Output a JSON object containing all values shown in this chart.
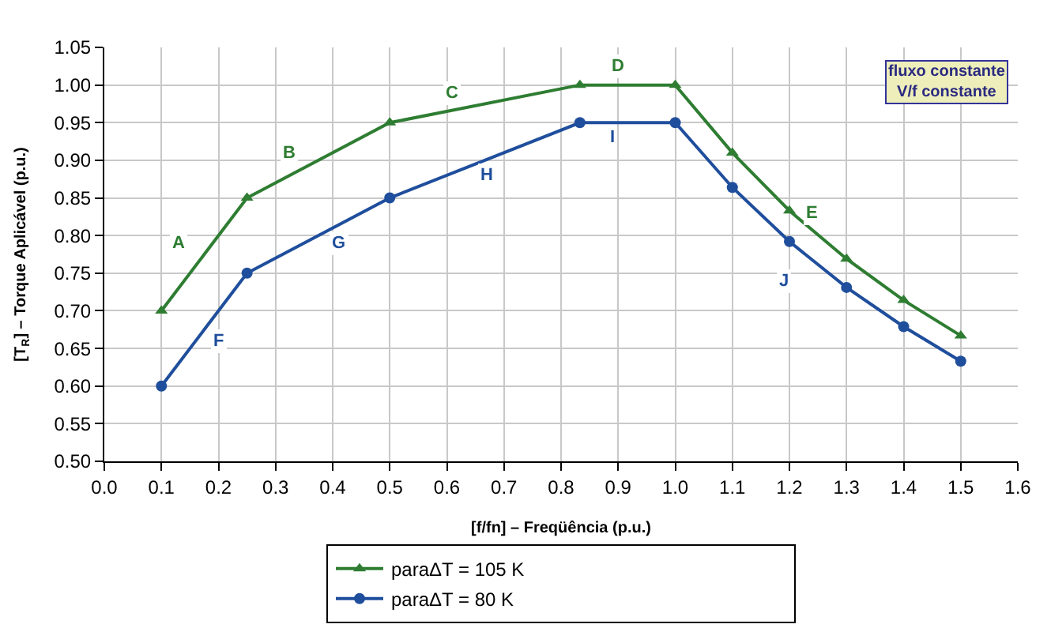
{
  "chart_data": {
    "type": "line",
    "xlabel": "[f/fn] – Freqüência (p.u.)",
    "ylabel": "[T$_{R}$] – Torque Aplicável (p.u.)",
    "x": [
      0.1,
      0.25,
      0.5,
      0.833,
      1.0,
      1.1,
      1.2,
      1.3,
      1.4,
      1.5
    ],
    "series": [
      {
        "name": "paraΔT = 105 K",
        "color": "#2e7d32",
        "marker": "triangle",
        "values": [
          0.7,
          0.85,
          0.95,
          1.0,
          1.0,
          0.91,
          0.833,
          0.769,
          0.714,
          0.667
        ]
      },
      {
        "name": "paraΔT = 80 K",
        "color": "#1f4e9c",
        "marker": "circle",
        "values": [
          0.6,
          0.75,
          0.85,
          0.95,
          0.95,
          0.864,
          0.792,
          0.731,
          0.679,
          0.633
        ]
      }
    ],
    "xlim": [
      0.0,
      1.6
    ],
    "xticks": [
      {
        "value": 0,
        "label": "0.0"
      },
      {
        "value": 0.1,
        "label": "0.1"
      },
      {
        "value": 0.2,
        "label": "0.2"
      },
      {
        "value": 0.3,
        "label": "0.3"
      },
      {
        "value": 0.4,
        "label": "0.4"
      },
      {
        "value": 0.5,
        "label": "0.5"
      },
      {
        "value": 0.6,
        "label": "0.6"
      },
      {
        "value": 0.7,
        "label": "0.7"
      },
      {
        "value": 0.8,
        "label": "0.8"
      },
      {
        "value": 0.9,
        "label": "0.9"
      },
      {
        "value": 1.0,
        "label": "1.0"
      },
      {
        "value": 1.1,
        "label": "1.1"
      },
      {
        "value": 1.2,
        "label": "1.2"
      },
      {
        "value": 1.3,
        "label": "1.3"
      },
      {
        "value": 1.4,
        "label": "1.4"
      },
      {
        "value": 1.5,
        "label": "1.5"
      },
      {
        "value": 1.6,
        "label": "1.6"
      }
    ],
    "ylim": [
      0.5,
      1.05
    ],
    "yticks": [
      {
        "value": 0.5,
        "label": "0.50"
      },
      {
        "value": 0.55,
        "label": "0.55"
      },
      {
        "value": 0.6,
        "label": "0.60"
      },
      {
        "value": 0.65,
        "label": "0.65"
      },
      {
        "value": 0.7,
        "label": "0.70"
      },
      {
        "value": 0.75,
        "label": "0.75"
      },
      {
        "value": 0.8,
        "label": "0.80"
      },
      {
        "value": 0.85,
        "label": "0.85"
      },
      {
        "value": 0.9,
        "label": "0.90"
      },
      {
        "value": 0.95,
        "label": "0.95"
      },
      {
        "value": 1.0,
        "label": "1.00"
      },
      {
        "value": 1.05,
        "label": "1.05"
      }
    ],
    "grid": true,
    "legend": "bottom",
    "line_style": "solid",
    "annotations": [
      {
        "text": "A",
        "x": 0.13,
        "y": 0.79
      },
      {
        "text": "B",
        "x": 0.325,
        "y": 0.91
      },
      {
        "text": "C",
        "x": 0.61,
        "y": 0.99
      },
      {
        "text": "D",
        "x": 0.9,
        "y": 1.025
      },
      {
        "text": "E",
        "x": 1.24,
        "y": 0.83
      },
      {
        "text": "F",
        "x": 0.2,
        "y": 0.66
      },
      {
        "text": "G",
        "x": 0.41,
        "y": 0.79
      },
      {
        "text": "H",
        "x": 0.67,
        "y": 0.88
      },
      {
        "text": "I",
        "x": 0.89,
        "y": 0.93
      },
      {
        "text": "J",
        "x": 1.19,
        "y": 0.74
      },
      "fluxo constante\nV/f constante"
    ]
  }
}
